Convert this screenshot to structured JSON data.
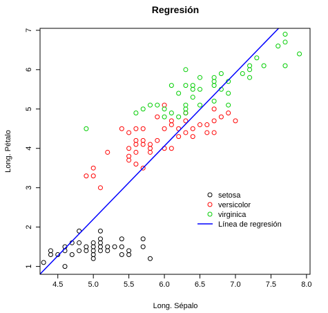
{
  "chart_data": {
    "type": "scatter",
    "title": "Regresión",
    "xlabel": "Long. Sépalo",
    "ylabel": "Long. Pétalo",
    "xlim": [
      4.25,
      8.05
    ],
    "ylim": [
      0.8,
      7.05
    ],
    "xticks": [
      4.5,
      5.0,
      5.5,
      6.0,
      6.5,
      7.0,
      7.5,
      8.0
    ],
    "yticks": [
      1,
      2,
      3,
      4,
      5,
      6,
      7
    ],
    "grid": false,
    "legend_position": "bottom-right",
    "series": [
      {
        "name": "setosa",
        "color": "#000000",
        "points": [
          [
            4.3,
            1.1
          ],
          [
            4.4,
            1.3
          ],
          [
            4.4,
            1.4
          ],
          [
            4.5,
            1.3
          ],
          [
            4.6,
            1.0
          ],
          [
            4.6,
            1.4
          ],
          [
            4.6,
            1.5
          ],
          [
            4.7,
            1.3
          ],
          [
            4.7,
            1.6
          ],
          [
            4.8,
            1.4
          ],
          [
            4.8,
            1.6
          ],
          [
            4.8,
            1.9
          ],
          [
            4.9,
            1.4
          ],
          [
            4.9,
            1.5
          ],
          [
            5.0,
            1.2
          ],
          [
            5.0,
            1.3
          ],
          [
            5.0,
            1.4
          ],
          [
            5.0,
            1.5
          ],
          [
            5.0,
            1.6
          ],
          [
            5.1,
            1.4
          ],
          [
            5.1,
            1.5
          ],
          [
            5.1,
            1.6
          ],
          [
            5.1,
            1.7
          ],
          [
            5.1,
            1.9
          ],
          [
            5.2,
            1.4
          ],
          [
            5.2,
            1.5
          ],
          [
            5.3,
            1.5
          ],
          [
            5.4,
            1.3
          ],
          [
            5.4,
            1.5
          ],
          [
            5.4,
            1.7
          ],
          [
            5.5,
            1.3
          ],
          [
            5.5,
            1.4
          ],
          [
            5.7,
            1.5
          ],
          [
            5.7,
            1.7
          ],
          [
            5.8,
            1.2
          ]
        ]
      },
      {
        "name": "versicolor",
        "color": "#ff0000",
        "points": [
          [
            4.9,
            3.3
          ],
          [
            5.0,
            3.3
          ],
          [
            5.0,
            3.5
          ],
          [
            5.1,
            3.0
          ],
          [
            5.2,
            3.9
          ],
          [
            5.4,
            4.5
          ],
          [
            5.5,
            3.7
          ],
          [
            5.5,
            3.8
          ],
          [
            5.5,
            4.0
          ],
          [
            5.5,
            4.4
          ],
          [
            5.6,
            3.6
          ],
          [
            5.6,
            3.9
          ],
          [
            5.6,
            4.1
          ],
          [
            5.6,
            4.2
          ],
          [
            5.6,
            4.5
          ],
          [
            5.7,
            3.5
          ],
          [
            5.7,
            4.1
          ],
          [
            5.7,
            4.2
          ],
          [
            5.7,
            4.5
          ],
          [
            5.8,
            3.9
          ],
          [
            5.8,
            4.0
          ],
          [
            5.8,
            4.1
          ],
          [
            5.9,
            4.2
          ],
          [
            5.9,
            4.8
          ],
          [
            6.0,
            4.0
          ],
          [
            6.0,
            4.5
          ],
          [
            6.0,
            5.1
          ],
          [
            6.1,
            4.0
          ],
          [
            6.1,
            4.6
          ],
          [
            6.1,
            4.7
          ],
          [
            6.2,
            4.3
          ],
          [
            6.2,
            4.5
          ],
          [
            6.3,
            4.4
          ],
          [
            6.3,
            4.7
          ],
          [
            6.3,
            4.9
          ],
          [
            6.4,
            4.3
          ],
          [
            6.4,
            4.5
          ],
          [
            6.5,
            4.6
          ],
          [
            6.6,
            4.4
          ],
          [
            6.6,
            4.6
          ],
          [
            6.7,
            4.4
          ],
          [
            6.7,
            4.7
          ],
          [
            6.7,
            5.0
          ],
          [
            6.8,
            4.8
          ],
          [
            6.9,
            4.9
          ],
          [
            7.0,
            4.7
          ]
        ]
      },
      {
        "name": "virginica",
        "color": "#00cd00",
        "points": [
          [
            4.9,
            4.5
          ],
          [
            5.6,
            4.9
          ],
          [
            5.7,
            5.0
          ],
          [
            5.8,
            5.1
          ],
          [
            5.9,
            5.1
          ],
          [
            6.0,
            4.8
          ],
          [
            6.0,
            5.0
          ],
          [
            6.1,
            4.9
          ],
          [
            6.1,
            5.6
          ],
          [
            6.2,
            4.8
          ],
          [
            6.2,
            5.4
          ],
          [
            6.3,
            4.9
          ],
          [
            6.3,
            5.0
          ],
          [
            6.3,
            5.1
          ],
          [
            6.3,
            5.6
          ],
          [
            6.3,
            6.0
          ],
          [
            6.4,
            5.3
          ],
          [
            6.4,
            5.5
          ],
          [
            6.4,
            5.6
          ],
          [
            6.5,
            5.1
          ],
          [
            6.5,
            5.5
          ],
          [
            6.5,
            5.8
          ],
          [
            6.7,
            5.2
          ],
          [
            6.7,
            5.6
          ],
          [
            6.7,
            5.7
          ],
          [
            6.7,
            5.8
          ],
          [
            6.8,
            5.5
          ],
          [
            6.8,
            5.9
          ],
          [
            6.9,
            5.1
          ],
          [
            6.9,
            5.4
          ],
          [
            6.9,
            5.7
          ],
          [
            7.1,
            5.9
          ],
          [
            7.2,
            5.8
          ],
          [
            7.2,
            6.0
          ],
          [
            7.2,
            6.1
          ],
          [
            7.3,
            6.3
          ],
          [
            7.4,
            6.1
          ],
          [
            7.6,
            6.6
          ],
          [
            7.7,
            6.1
          ],
          [
            7.7,
            6.7
          ],
          [
            7.7,
            6.9
          ],
          [
            7.9,
            6.4
          ]
        ]
      }
    ],
    "regression_line": {
      "name": "Línea de regresión",
      "color": "#0000ff",
      "intercept": -7.1,
      "slope": 1.86
    }
  }
}
